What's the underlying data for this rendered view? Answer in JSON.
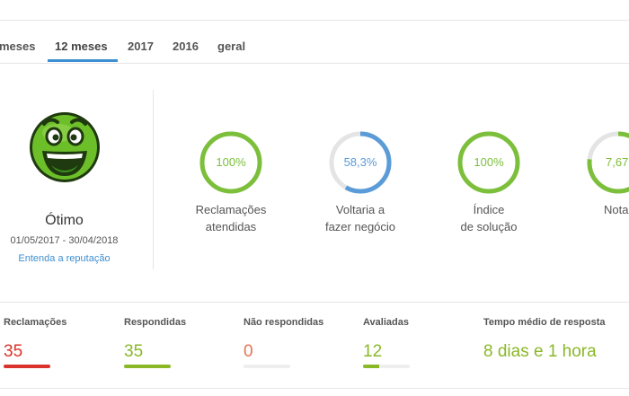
{
  "tabs": [
    {
      "label": "meses",
      "active": false
    },
    {
      "label": "12 meses",
      "active": true
    },
    {
      "label": "2017",
      "active": false
    },
    {
      "label": "2016",
      "active": false
    },
    {
      "label": "geral",
      "active": false
    }
  ],
  "reputation": {
    "icon": "happy-face-icon",
    "label": "Ótimo",
    "period": "01/05/2017 - 30/04/2018",
    "link": "Entenda a reputação"
  },
  "gauges": [
    {
      "value_text": "100%",
      "fraction": 1.0,
      "color": "#7cbf3a",
      "text_color": "#7cbf3a",
      "label_line1": "Reclamações",
      "label_line2": "atendidas"
    },
    {
      "value_text": "58,3%",
      "fraction": 0.583,
      "color": "#5a9bd8",
      "text_color": "#5a9bd8",
      "label_line1": "Voltaria a",
      "label_line2": "fazer negócio"
    },
    {
      "value_text": "100%",
      "fraction": 1.0,
      "color": "#7cbf3a",
      "text_color": "#7cbf3a",
      "label_line1": "Índice",
      "label_line2": "de solução"
    },
    {
      "value_text": "7,67",
      "fraction": 0.767,
      "color": "#7cbf3a",
      "text_color": "#7cbf3a",
      "label_line1": "Nota",
      "label_line2": ""
    }
  ],
  "stats": [
    {
      "title": "Reclamações",
      "value": "35",
      "color": "#d9332b",
      "fill": 1.0
    },
    {
      "title": "Respondidas",
      "value": "35",
      "color": "#8ab827",
      "fill": 1.0
    },
    {
      "title": "Não respondidas",
      "value": "0",
      "color": "#e4744f",
      "fill": 0.0
    },
    {
      "title": "Avaliadas",
      "value": "12",
      "color": "#8ab827",
      "fill": 0.34
    },
    {
      "title": "Tempo médio de resposta",
      "value": "8 dias e 1 hora",
      "color": "#8ab827",
      "fill": null
    }
  ],
  "colors": {
    "accent": "#3d8fd1",
    "face_green": "#6dbf2a"
  }
}
